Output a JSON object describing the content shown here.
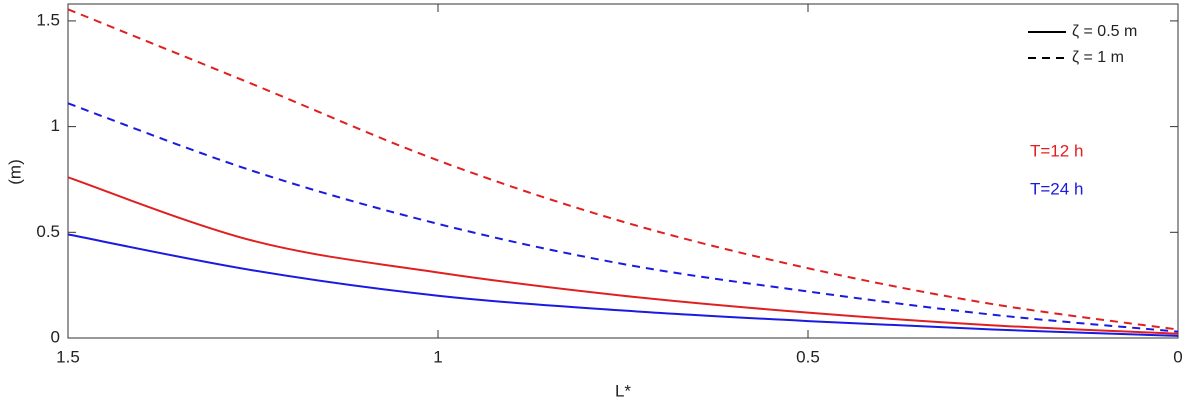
{
  "chart_data": {
    "type": "line",
    "y_label": "(m)",
    "x_label": "L*",
    "x": [
      1.5,
      1.25,
      1,
      0.75,
      0.5,
      0.25,
      0
    ],
    "series": [
      {
        "color": "#e02020",
        "dash": "dashed",
        "values": [
          1.555,
          1.2,
          0.84,
          0.55,
          0.33,
          0.16,
          0.04
        ]
      },
      {
        "color": "#1a1ae0",
        "dash": "dashed",
        "values": [
          1.11,
          0.79,
          0.54,
          0.35,
          0.22,
          0.11,
          0.03
        ]
      },
      {
        "color": "#e02020",
        "dash": "solid",
        "values": [
          0.76,
          0.46,
          0.31,
          0.2,
          0.12,
          0.06,
          0.02
        ]
      },
      {
        "color": "#1a1ae0",
        "dash": "solid",
        "values": [
          0.49,
          0.32,
          0.2,
          0.13,
          0.08,
          0.04,
          0.01
        ]
      }
    ],
    "legend": [
      {
        "label": "ζ = 0.5 m",
        "dash": "solid"
      },
      {
        "label": "ζ = 1 m",
        "dash": "dashed"
      }
    ],
    "annotations": [
      {
        "text": "T=12 h",
        "color": "#e02020"
      },
      {
        "text": "T=24 h",
        "color": "#1a1ae0"
      }
    ],
    "xlim": [
      1.5,
      0
    ],
    "xticks": [
      1.5,
      1,
      0.5,
      0
    ],
    "ylim": [
      0,
      1.58
    ],
    "yticks": [
      0,
      0.5,
      1,
      1.5
    ]
  }
}
